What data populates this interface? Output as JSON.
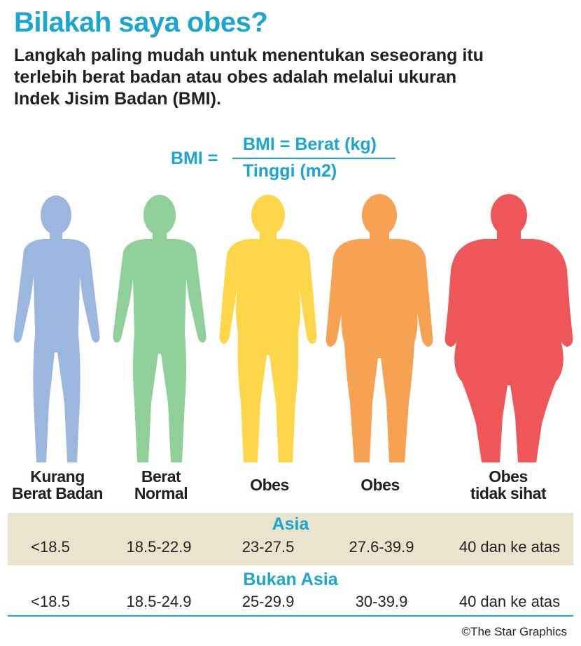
{
  "header": {
    "title": "Bilakah saya obes?",
    "subtitle": "Langkah paling mudah untuk menentukan seseorang itu terlebih berat badan atau obes adalah melalui ukuran Indek Jisim Badan (BMI)."
  },
  "formula": {
    "lhs": "BMI =",
    "numerator": "BMI = Berat (kg)",
    "denominator": "Tinggi (m2)",
    "color": "#1aa6cf"
  },
  "categories": [
    {
      "label": "Kurang\nBerat Badan",
      "color": "#9bb7e0",
      "icon": "underweight-body-silhouette"
    },
    {
      "label": "Berat\nNormal",
      "color": "#8ecf9a",
      "icon": "normal-body-silhouette"
    },
    {
      "label": "Obes",
      "color": "#fdd64a",
      "icon": "overweight-body-silhouette"
    },
    {
      "label": "Obes",
      "color": "#f7a153",
      "icon": "obese-body-silhouette"
    },
    {
      "label": "Obes\ntidak sihat",
      "color": "#ef5659",
      "icon": "severely-obese-body-silhouette"
    }
  ],
  "asia": {
    "heading": "Asia",
    "values": [
      "<18.5",
      "18.5-22.9",
      "23-27.5",
      "27.6-39.9",
      "40 dan ke atas"
    ]
  },
  "non_asia": {
    "heading": "Bukan Asia",
    "values": [
      "<18.5",
      "18.5-24.9",
      "25-29.9",
      "30-39.9",
      "40 dan ke atas"
    ]
  },
  "credit": "©The Star Graphics"
}
